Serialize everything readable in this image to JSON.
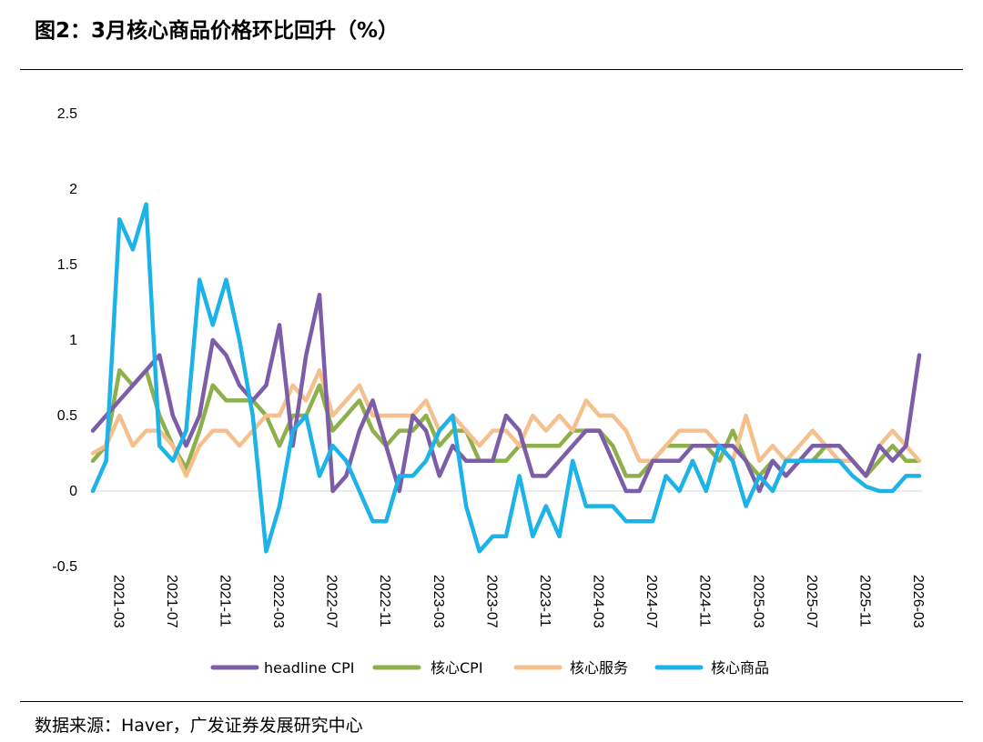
{
  "figure": {
    "title": "图2：3月核心商品价格环比回升（%）",
    "source": "数据来源：Haver，广发证券发展研究中心"
  },
  "chart_data": {
    "type": "line",
    "title": "3月核心商品价格环比回升（%）",
    "xlabel": "",
    "ylabel": "",
    "ylim": [
      -0.5,
      2.5
    ],
    "yticks": [
      2.5,
      2,
      1.5,
      1,
      0.5,
      0,
      -0.5
    ],
    "ytick_labels": [
      "2.5",
      "2",
      "1.5",
      "1",
      "0.5",
      "0",
      "-0.5"
    ],
    "xtick_labels": [
      "2021-03",
      "2021-07",
      "2021-11",
      "2022-03",
      "2022-07",
      "2022-11",
      "2023-03",
      "2023-07",
      "2023-11",
      "2024-03",
      "2024-07",
      "2024-11",
      "2025-03",
      "2025-07",
      "2025-11",
      "2026-03"
    ],
    "x": [
      "2021-01",
      "2021-02",
      "2021-03",
      "2021-04",
      "2021-05",
      "2021-06",
      "2021-07",
      "2021-08",
      "2021-09",
      "2021-10",
      "2021-11",
      "2021-12",
      "2022-01",
      "2022-02",
      "2022-03",
      "2022-04",
      "2022-05",
      "2022-06",
      "2022-07",
      "2022-08",
      "2022-09",
      "2022-10",
      "2022-11",
      "2022-12",
      "2023-01",
      "2023-02",
      "2023-03",
      "2023-04",
      "2023-05",
      "2023-06",
      "2023-07",
      "2023-08",
      "2023-09",
      "2023-10",
      "2023-11",
      "2023-12",
      "2024-01",
      "2024-02",
      "2024-03",
      "2024-04",
      "2024-05",
      "2024-06",
      "2024-07",
      "2024-08",
      "2024-09",
      "2024-10",
      "2024-11",
      "2024-12",
      "2025-01",
      "2025-02",
      "2025-03",
      "2025-04",
      "2025-05",
      "2025-06",
      "2025-07",
      "2025-08",
      "2025-09",
      "2025-10",
      "2025-11",
      "2025-12",
      "2026-01",
      "2026-02",
      "2026-03"
    ],
    "legend_position": "bottom",
    "series": [
      {
        "name": "headline CPI",
        "color": "#7B5EA7",
        "values": [
          0.4,
          0.5,
          0.6,
          0.7,
          0.8,
          0.9,
          0.5,
          0.3,
          0.5,
          1.0,
          0.9,
          0.7,
          0.6,
          0.7,
          1.1,
          0.3,
          0.9,
          1.3,
          0.0,
          0.1,
          0.4,
          0.6,
          0.3,
          0.0,
          0.5,
          0.4,
          0.1,
          0.3,
          0.2,
          0.2,
          0.2,
          0.5,
          0.4,
          0.1,
          0.1,
          0.2,
          0.3,
          0.4,
          0.4,
          0.2,
          0.0,
          0.0,
          0.2,
          0.2,
          0.2,
          0.3,
          0.3,
          0.3,
          0.3,
          0.2,
          0.0,
          0.2,
          0.1,
          0.2,
          0.3,
          0.3,
          0.3,
          0.2,
          0.1,
          0.3,
          0.2,
          0.3,
          0.9
        ]
      },
      {
        "name": "核心CPI",
        "color": "#8DB04B",
        "values": [
          0.2,
          0.3,
          0.8,
          0.7,
          0.8,
          0.5,
          0.3,
          0.15,
          0.4,
          0.7,
          0.6,
          0.6,
          0.6,
          0.5,
          0.3,
          0.5,
          0.5,
          0.7,
          0.4,
          0.5,
          0.6,
          0.4,
          0.3,
          0.4,
          0.4,
          0.5,
          0.3,
          0.4,
          0.4,
          0.2,
          0.2,
          0.2,
          0.3,
          0.3,
          0.3,
          0.3,
          0.4,
          0.4,
          0.4,
          0.3,
          0.1,
          0.1,
          0.2,
          0.3,
          0.3,
          0.3,
          0.3,
          0.2,
          0.4,
          0.2,
          0.1,
          0.2,
          0.1,
          0.2,
          0.2,
          0.3,
          0.3,
          0.2,
          0.1,
          0.2,
          0.3,
          0.2,
          0.2
        ]
      },
      {
        "name": "核心服务",
        "color": "#F6C08E",
        "values": [
          0.25,
          0.3,
          0.5,
          0.3,
          0.4,
          0.4,
          0.3,
          0.1,
          0.3,
          0.4,
          0.4,
          0.3,
          0.4,
          0.5,
          0.5,
          0.7,
          0.6,
          0.8,
          0.5,
          0.6,
          0.7,
          0.5,
          0.5,
          0.5,
          0.5,
          0.6,
          0.4,
          0.5,
          0.4,
          0.3,
          0.4,
          0.4,
          0.3,
          0.5,
          0.4,
          0.5,
          0.4,
          0.6,
          0.5,
          0.5,
          0.4,
          0.2,
          0.2,
          0.3,
          0.4,
          0.4,
          0.4,
          0.3,
          0.2,
          0.5,
          0.2,
          0.3,
          0.2,
          0.3,
          0.4,
          0.3,
          0.2,
          0.2,
          0.1,
          0.3,
          0.4,
          0.3,
          0.2
        ]
      },
      {
        "name": "核心商品",
        "color": "#1DB3E8",
        "values": [
          0.0,
          0.2,
          1.8,
          1.6,
          1.9,
          0.3,
          0.2,
          0.4,
          1.4,
          1.1,
          1.4,
          1.0,
          0.5,
          -0.4,
          -0.1,
          0.4,
          0.5,
          0.1,
          0.3,
          0.2,
          0.0,
          -0.2,
          -0.2,
          0.1,
          0.1,
          0.2,
          0.4,
          0.5,
          -0.1,
          -0.4,
          -0.3,
          -0.3,
          0.1,
          -0.3,
          -0.1,
          -0.3,
          0.2,
          -0.1,
          -0.1,
          -0.1,
          -0.2,
          -0.2,
          -0.2,
          0.1,
          0.0,
          0.2,
          0.0,
          0.3,
          0.2,
          -0.1,
          0.1,
          0.0,
          0.2,
          0.2,
          0.2,
          0.2,
          0.2,
          0.1,
          0.03,
          0.0,
          0.0,
          0.1,
          0.1
        ]
      }
    ]
  }
}
